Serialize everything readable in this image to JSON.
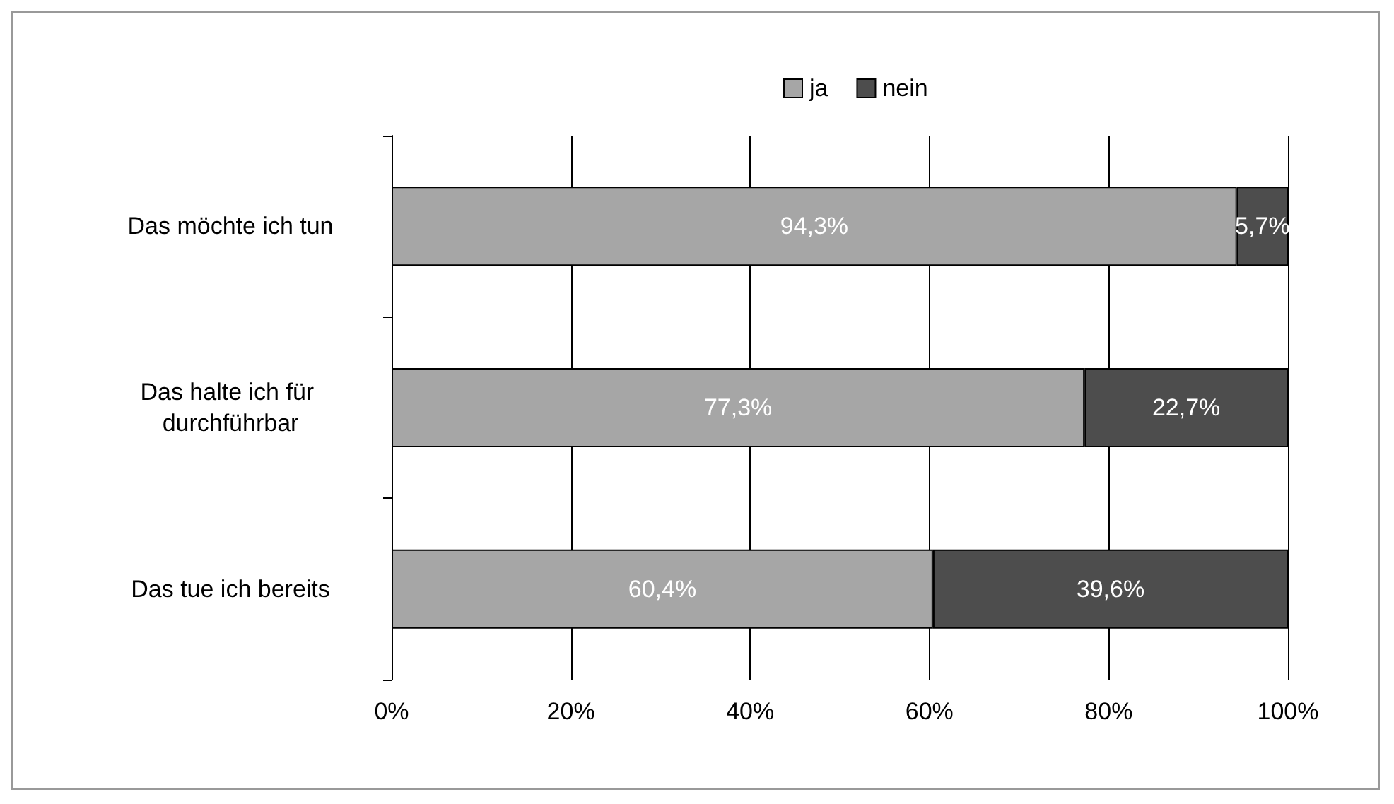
{
  "chart_data": {
    "type": "bar",
    "orientation": "horizontal",
    "stacked": true,
    "categories": [
      "Das möchte ich tun",
      "Das halte ich für durchführbar",
      "Das tue ich bereits"
    ],
    "series": [
      {
        "name": "ja",
        "color": "#a6a6a6",
        "values": [
          94.3,
          77.3,
          60.4
        ],
        "value_labels": [
          "94,3%",
          "77,3%",
          "60,4%"
        ]
      },
      {
        "name": "nein",
        "color": "#4d4d4d",
        "values": [
          5.7,
          22.7,
          39.6
        ],
        "value_labels": [
          "5,7%",
          "22,7%",
          "39,6%"
        ]
      }
    ],
    "xlim": [
      0,
      100
    ],
    "xticks": [
      {
        "value": 0,
        "label": "0%"
      },
      {
        "value": 20,
        "label": "20%"
      },
      {
        "value": 40,
        "label": "40%"
      },
      {
        "value": 60,
        "label": "60%"
      },
      {
        "value": 80,
        "label": "80%"
      },
      {
        "value": 100,
        "label": "100%"
      }
    ],
    "grid": "x",
    "legend": "top"
  }
}
